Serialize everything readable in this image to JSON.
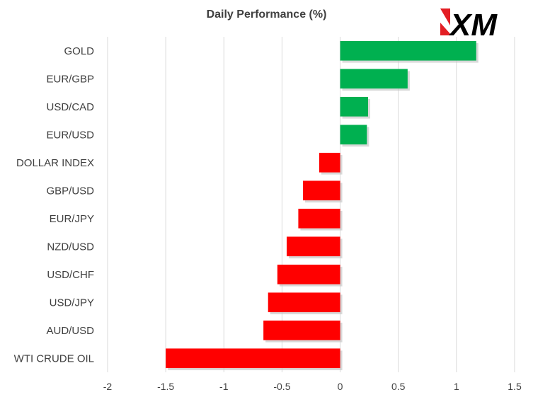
{
  "chart_data": {
    "type": "bar",
    "orientation": "horizontal",
    "title": "Daily Performance  (%)",
    "categories": [
      "GOLD",
      "EUR/GBP",
      "USD/CAD",
      "EUR/USD",
      "DOLLAR INDEX",
      "GBP/USD",
      "EUR/JPY",
      "NZD/USD",
      "USD/CHF",
      "USD/JPY",
      "AUD/USD",
      "WTI CRUDE OIL"
    ],
    "values": [
      1.17,
      0.58,
      0.24,
      0.23,
      -0.18,
      -0.32,
      -0.36,
      -0.46,
      -0.54,
      -0.62,
      -0.66,
      -1.5
    ],
    "xlim": [
      -2,
      1.5
    ],
    "xticks": [
      "-2",
      "-1.5",
      "-1",
      "-0.5",
      "0",
      "0.5",
      "1",
      "1.5"
    ],
    "grid": "vertical",
    "colors": {
      "positive": "#00b050",
      "negative": "#ff0000",
      "grid": "#d9d9d9",
      "text": "#404040"
    }
  },
  "logo": {
    "text": "XM",
    "colors": {
      "mark": "#e31e24",
      "letters": "#000000"
    }
  }
}
